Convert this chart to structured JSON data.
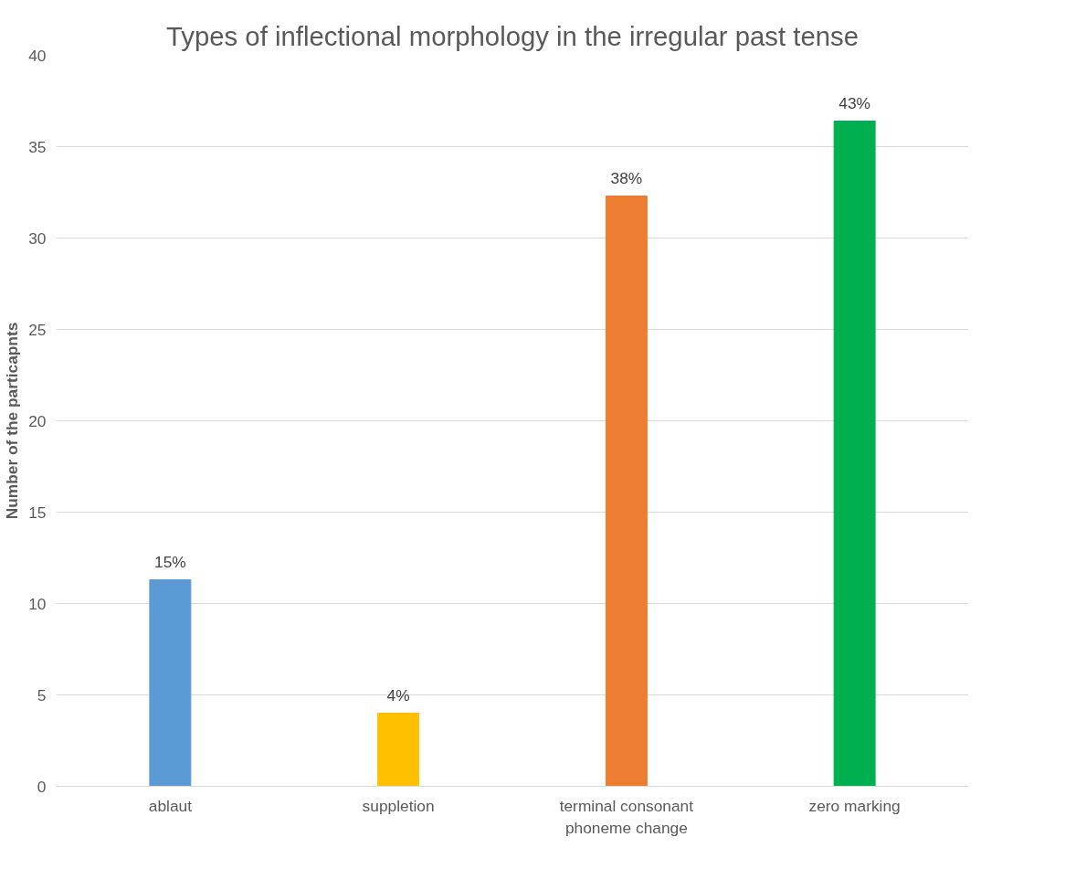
{
  "chart_data": {
    "type": "bar",
    "title": "Types of inflectional morphology in the irregular past tense",
    "ylabel": "Number of the particapnts",
    "categories": [
      "ablaut",
      "suppletion",
      "terminal consonant phoneme change",
      "zero marking"
    ],
    "values": [
      11.3,
      4.0,
      32.3,
      36.4
    ],
    "colors": [
      "#5b9bd5",
      "#ffc000",
      "#ed7d31",
      "#00b050"
    ],
    "annotations": [
      {
        "text": "15%",
        "x": "ablaut",
        "y": 11.3
      },
      {
        "text": "4%",
        "x": "suppletion",
        "y": 4.0
      },
      {
        "text": "38%",
        "x": "terminal consonant phoneme change",
        "y": 32.3
      },
      {
        "text": "43%",
        "x": "zero marking",
        "y": 36.4
      }
    ],
    "ylim": [
      0,
      40
    ],
    "yticks": [
      0,
      5,
      10,
      15,
      20,
      25,
      30,
      35,
      40
    ],
    "grid": "y"
  }
}
